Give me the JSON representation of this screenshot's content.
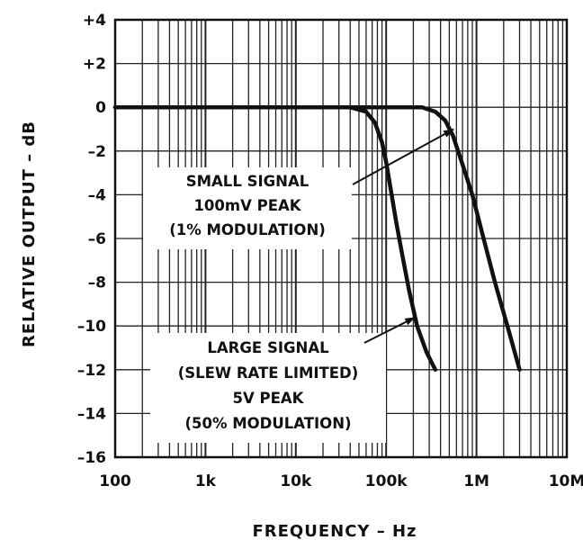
{
  "chart_data": {
    "type": "line",
    "xlabel": "FREQUENCY – Hz",
    "ylabel": "RELATIVE OUTPUT – dB",
    "xscale": "log",
    "xlim": [
      100,
      10000000
    ],
    "ylim": [
      -16,
      4
    ],
    "grid": true,
    "x_ticks": [
      {
        "value": 100,
        "label": "100"
      },
      {
        "value": 1000,
        "label": "1k"
      },
      {
        "value": 10000,
        "label": "10k"
      },
      {
        "value": 100000,
        "label": "100k"
      },
      {
        "value": 1000000,
        "label": "1M"
      },
      {
        "value": 10000000,
        "label": "10M"
      }
    ],
    "y_ticks": [
      {
        "value": 4,
        "label": "+4"
      },
      {
        "value": 2,
        "label": "+2"
      },
      {
        "value": 0,
        "label": "0"
      },
      {
        "value": -2,
        "label": "–2"
      },
      {
        "value": -4,
        "label": "–4"
      },
      {
        "value": -6,
        "label": "–6"
      },
      {
        "value": -8,
        "label": "–8"
      },
      {
        "value": -10,
        "label": "–10"
      },
      {
        "value": -12,
        "label": "–12"
      },
      {
        "value": -14,
        "label": "–14"
      },
      {
        "value": -16,
        "label": "–16"
      }
    ],
    "series": [
      {
        "x": [
          100,
          10000,
          40000,
          60000,
          75000,
          90000,
          100000,
          115000,
          130000,
          150000,
          180000,
          220000,
          280000,
          350000
        ],
        "y": [
          0,
          0,
          0,
          -0.2,
          -0.7,
          -1.6,
          -2.5,
          -4,
          -5.3,
          -6.7,
          -8.4,
          -10,
          -11.2,
          -12
        ]
      },
      {
        "x": [
          100,
          100000,
          250000,
          350000,
          450000,
          550000,
          700000,
          900000,
          1200000,
          1600000,
          2200000,
          3000000
        ],
        "y": [
          0,
          0,
          0,
          -0.2,
          -0.6,
          -1.3,
          -2.6,
          -4,
          -6,
          -8,
          -10,
          -12
        ]
      }
    ],
    "annotations": [
      {
        "lines": [
          "SMALL SIGNAL",
          "100mV PEAK",
          "(1% MODULATION)"
        ],
        "arrow_to": {
          "x": 560000,
          "y": -1
        }
      },
      {
        "lines": [
          "LARGE SIGNAL",
          "(SLEW RATE LIMITED)",
          "5V PEAK",
          "(50% MODULATION)"
        ],
        "arrow_to": {
          "x": 210000,
          "y": -9.6
        }
      }
    ]
  }
}
